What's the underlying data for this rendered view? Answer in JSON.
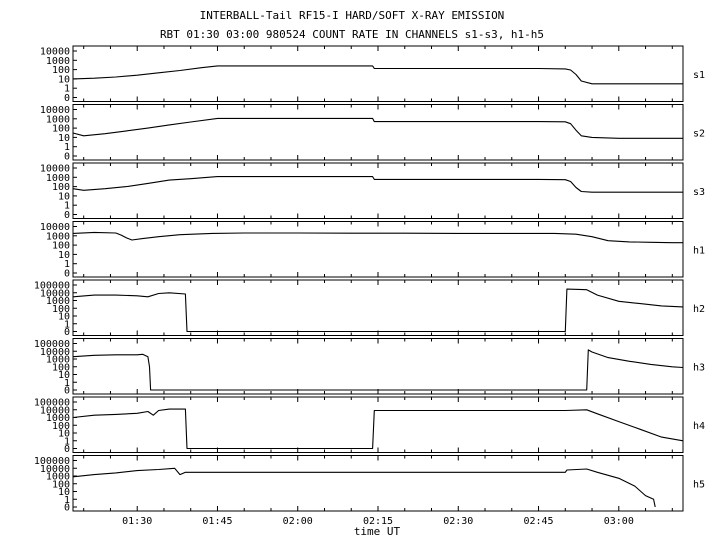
{
  "chart_data": {
    "type": "line",
    "title": "INTERBALL-Tail RF15-I HARD/SOFT X-RAY EMISSION",
    "subtitle": "RBT 01:30 03:00 980524  COUNT RATE IN CHANNELS s1-s3, h1-h5",
    "xlabel": "time UT",
    "x_tick_labels": [
      "01:30",
      "01:45",
      "02:00",
      "02:15",
      "02:30",
      "02:45",
      "03:00"
    ],
    "x_ticks_min": [
      90,
      105,
      120,
      135,
      150,
      165,
      180
    ],
    "xlim_min": [
      78,
      192
    ],
    "grid": false,
    "y_scale": "log",
    "panels": [
      {
        "name": "s1",
        "y_tick_labels": [
          "10000",
          "1000",
          "100",
          "10",
          "1",
          "0"
        ],
        "series": [
          {
            "name": "s1",
            "x": [
              78,
              82,
              86,
              90,
              94,
              98,
              102,
              105,
              108,
              112,
              116,
              120,
              124,
              128,
              132,
              134,
              134.3,
              140,
              150,
              160,
              165,
              170,
              171,
              172,
              173,
              175,
              180,
              185,
              190,
              192
            ],
            "y": [
              10,
              12,
              16,
              25,
              45,
              80,
              160,
              250,
              250,
              250,
              250,
              250,
              250,
              250,
              250,
              250,
              130,
              130,
              130,
              130,
              130,
              120,
              90,
              30,
              6,
              3,
              3,
              3,
              3,
              3
            ]
          }
        ]
      },
      {
        "name": "s2",
        "y_tick_labels": [
          "10000",
          "1000",
          "100",
          "10",
          "1",
          "0"
        ],
        "series": [
          {
            "name": "s2",
            "x": [
              78,
              80,
              84,
              88,
              92,
              96,
              100,
              105,
              108,
              112,
              116,
              120,
              124,
              128,
              132,
              134,
              134.3,
              140,
              150,
              160,
              165,
              170,
              171,
              172,
              173,
              175,
              180,
              185,
              190,
              192
            ],
            "y": [
              30,
              15,
              25,
              50,
              100,
              220,
              450,
              1100,
              1100,
              1100,
              1100,
              1100,
              1100,
              1100,
              1100,
              1100,
              500,
              500,
              500,
              500,
              500,
              480,
              300,
              60,
              15,
              10,
              8,
              8,
              8,
              8
            ]
          }
        ]
      },
      {
        "name": "s3",
        "y_tick_labels": [
          "10000",
          "1000",
          "100",
          "10",
          "1",
          "0"
        ],
        "series": [
          {
            "name": "s3",
            "x": [
              78,
              80,
              84,
              88,
              92,
              96,
              100,
              105,
              108,
              112,
              116,
              120,
              124,
              128,
              132,
              134,
              134.3,
              140,
              150,
              160,
              165,
              170,
              171,
              172,
              173,
              175,
              180,
              185,
              190,
              192
            ],
            "y": [
              60,
              40,
              60,
              100,
              220,
              500,
              700,
              1200,
              1200,
              1200,
              1200,
              1200,
              1200,
              1200,
              1200,
              1200,
              600,
              600,
              600,
              600,
              600,
              550,
              350,
              80,
              30,
              25,
              25,
              25,
              25,
              25
            ]
          }
        ]
      },
      {
        "name": "h1",
        "y_tick_labels": [
          "10000",
          "1000",
          "100",
          "10",
          "1",
          "0"
        ],
        "series": [
          {
            "name": "h1",
            "x": [
              78,
              82,
              86,
              87,
              88,
              89,
              91,
              94,
              98,
              104,
              110,
              120,
              130,
              140,
              150,
              160,
              168,
              172,
              175,
              178,
              182,
              186,
              190,
              192
            ],
            "y": [
              1800,
              2300,
              2000,
              1200,
              600,
              350,
              500,
              800,
              1300,
              1800,
              2000,
              2000,
              1900,
              1900,
              1800,
              1800,
              1800,
              1500,
              800,
              300,
              220,
              200,
              180,
              180
            ]
          }
        ]
      },
      {
        "name": "h2",
        "y_tick_labels": [
          "100000",
          "10000",
          "1000",
          "100",
          "10",
          "1",
          "0"
        ],
        "series": [
          {
            "name": "h2",
            "x": [
              78,
              82,
              86,
              90,
              92,
              94,
              96,
              99,
              99.3,
              170,
              170.3,
              174,
              176,
              180,
              184,
              188,
              192
            ],
            "y": [
              3000,
              5000,
              5000,
              4000,
              3000,
              8000,
              10000,
              7000,
              0,
              0,
              30000,
              25000,
              5000,
              800,
              400,
              200,
              150
            ]
          }
        ]
      },
      {
        "name": "h3",
        "y_tick_labels": [
          "100000",
          "10000",
          "1000",
          "100",
          "10",
          "1",
          "0"
        ],
        "series": [
          {
            "name": "h3",
            "x": [
              78,
              82,
              86,
              90,
              91,
              92,
              92.3,
              92.5,
              174,
              174.3,
              175,
              178,
              182,
              186,
              190,
              192
            ],
            "y": [
              2000,
              3000,
              3500,
              3500,
              4000,
              2000,
              100,
              0,
              0,
              15000,
              8000,
              1500,
              500,
              200,
              100,
              80
            ]
          }
        ]
      },
      {
        "name": "h4",
        "y_tick_labels": [
          "100000",
          "10000",
          "1000",
          "100",
          "10",
          "1",
          "0"
        ],
        "series": [
          {
            "name": "h4",
            "x": [
              78,
              82,
              86,
              90,
              92,
              93,
              94,
              96,
              99,
              99.3,
              134,
              134.3,
              150,
              160,
              170,
              174,
              176,
              180,
              184,
              188,
              192
            ],
            "y": [
              1000,
              2000,
              2500,
              3500,
              6000,
              2000,
              8000,
              12000,
              12000,
              0,
              0,
              8000,
              8000,
              8000,
              8000,
              10000,
              3000,
              300,
              30,
              3,
              1
            ]
          }
        ]
      },
      {
        "name": "h5",
        "y_tick_labels": [
          "100000",
          "10000",
          "1000",
          "100",
          "10",
          "1",
          "0"
        ],
        "series": [
          {
            "name": "h5",
            "x": [
              78,
              82,
              86,
              90,
              94,
              97,
              98,
              99,
              99.3,
              110,
              120,
              134,
              150,
              170,
              170.3,
              174,
              176,
              180,
              183,
              185,
              186.5,
              186.8
            ],
            "y": [
              800,
              1500,
              2500,
              5000,
              7000,
              10000,
              1500,
              3000,
              3000,
              3000,
              3000,
              3000,
              3000,
              3000,
              6000,
              8000,
              3000,
              500,
              50,
              3,
              1,
              0
            ]
          }
        ]
      }
    ]
  }
}
